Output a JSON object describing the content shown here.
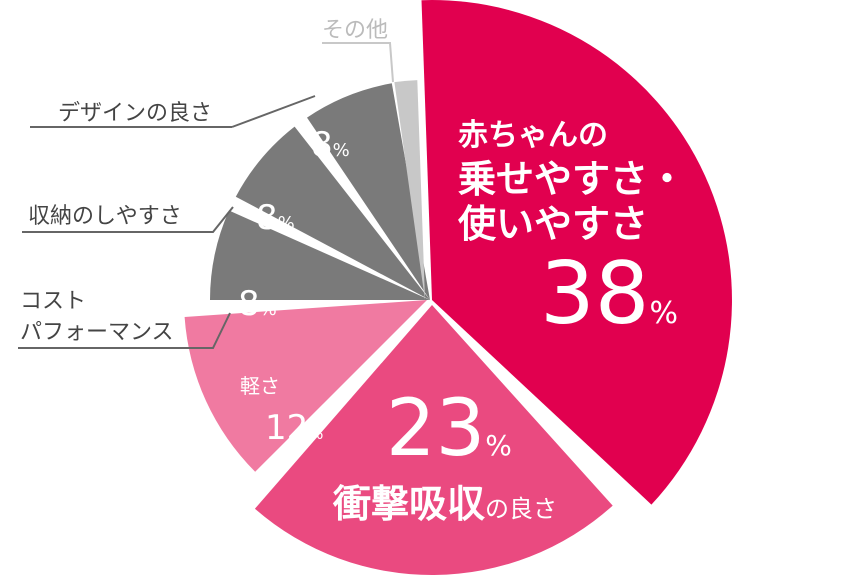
{
  "chart_data": {
    "type": "pie",
    "slices": [
      {
        "label": "赤ちゃんの 乗せやすさ・使いやすさ",
        "label_lines": [
          "赤ちゃんの",
          "乗せやすさ・",
          "使いやすさ"
        ],
        "value": 38,
        "value_text": "38",
        "unit": "%",
        "color": "#e1004f"
      },
      {
        "label": "衝撃吸収の良さ",
        "label_main": "衝撃吸収",
        "label_suffix": "の良さ",
        "value": 23,
        "value_text": "23",
        "unit": "%",
        "color": "#ea4a80"
      },
      {
        "label": "軽さ",
        "value": 12,
        "value_text": "12",
        "unit": "%",
        "color": "#f07aa1"
      },
      {
        "label": "コスト パフォーマンス",
        "label_lines": [
          "コスト",
          "パフォーマンス"
        ],
        "value": 8,
        "value_text": "8",
        "unit": "%",
        "color": "#7a7a7a"
      },
      {
        "label": "収納のしやすさ",
        "value": 8,
        "value_text": "8",
        "unit": "%",
        "color": "#7a7a7a"
      },
      {
        "label": "デザインの良さ",
        "value": 8,
        "value_text": "8",
        "unit": "%",
        "color": "#7a7a7a"
      },
      {
        "label": "その他",
        "value": 3,
        "color": "#c8c8c8"
      }
    ]
  }
}
